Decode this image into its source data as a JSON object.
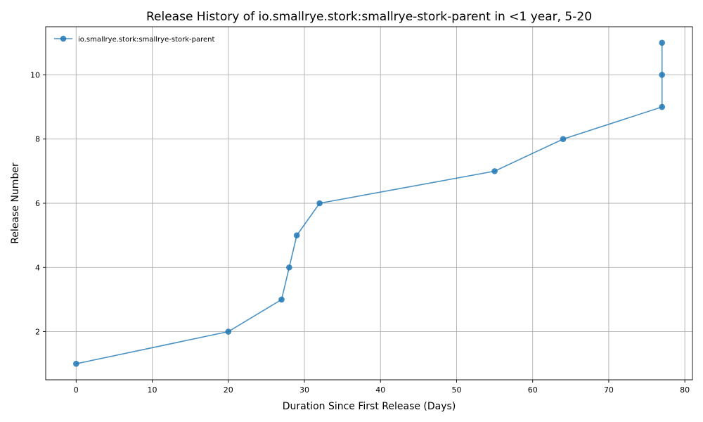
{
  "chart_data": {
    "type": "line",
    "title": "Release History of io.smallrye.stork:smallrye-stork-parent in <1 year, 5-20",
    "xlabel": "Duration Since First Release (Days)",
    "ylabel": "Release Number",
    "xlim": [
      -4,
      81
    ],
    "ylim": [
      0.5,
      11.5
    ],
    "xticks": [
      0,
      10,
      20,
      30,
      40,
      50,
      60,
      70,
      80
    ],
    "yticks": [
      2,
      4,
      6,
      8,
      10
    ],
    "grid": true,
    "legend_position": "top-left",
    "series": [
      {
        "name": "io.smallrye.stork:smallrye-stork-parent",
        "color": "#1f77b4",
        "marker": "circle",
        "x": [
          0,
          20,
          27,
          28,
          29,
          32,
          55,
          64,
          77,
          77,
          77
        ],
        "y": [
          1,
          2,
          3,
          4,
          5,
          6,
          7,
          8,
          9,
          10,
          11
        ]
      }
    ]
  }
}
